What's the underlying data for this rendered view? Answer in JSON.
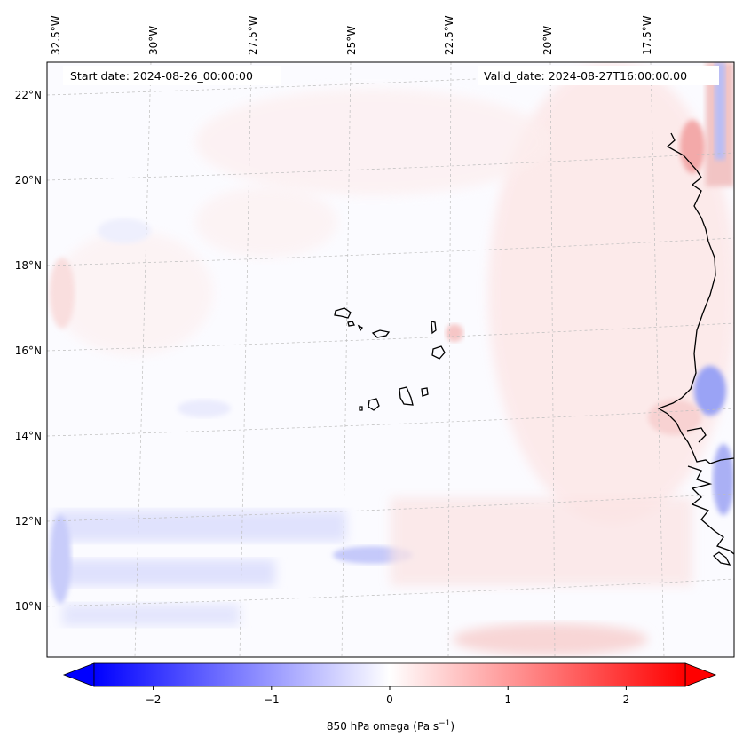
{
  "map": {
    "start_date_label": "Start date: 2024-08-26_00:00:00",
    "valid_date_label": "Valid_date: 2024-08-27T16:00:00.00",
    "lon_labels": [
      "32.5°W",
      "30°W",
      "27.5°W",
      "25°W",
      "22.5°W",
      "20°W",
      "17.5°W"
    ],
    "lat_labels": [
      "22°N",
      "20°N",
      "18°N",
      "16°N",
      "14°N",
      "12°N",
      "10°N"
    ],
    "field": "omega at 850 hPa",
    "colormap": "bwr"
  },
  "colorbar": {
    "label_main": "850 hPa omega (Pa s",
    "label_exp": "−1",
    "label_close": ")",
    "ticks": [
      "−2",
      "−1",
      "0",
      "1",
      "2"
    ],
    "tick_values": [
      -2,
      -1,
      0,
      1,
      2
    ],
    "vmin": -2.5,
    "vmax": 2.5,
    "color_low": "#0000ff",
    "color_mid": "#ffffff",
    "color_high": "#ff0000"
  }
}
